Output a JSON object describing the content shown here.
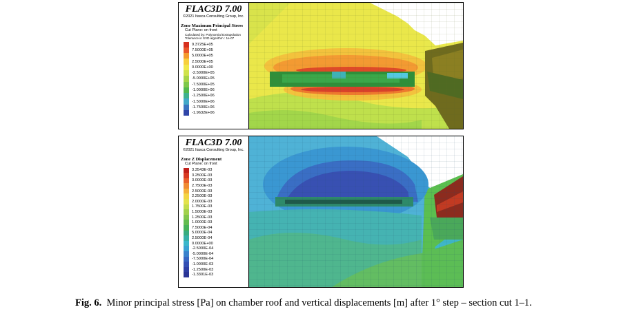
{
  "top_panel": {
    "brand": "FLAC3D 7.00",
    "copyright": "©2021 Itasca Consulting Group, Inc.",
    "legend_title": "Zone Maximum Principal Stress",
    "cut_plane": "Cut Plane: on front",
    "notes": [
      "Calculated by: Polynomial Extrapolation",
      "Tolerance in SVD algorithm : 1e-07"
    ],
    "scale": [
      {
        "label": "9.3725E+05",
        "color": "#d7301f"
      },
      {
        "label": "7.5000E+05",
        "color": "#e9572b"
      },
      {
        "label": "5.0000E+05",
        "color": "#f49a2e"
      },
      {
        "label": "2.5000E+05",
        "color": "#f7cf3d"
      },
      {
        "label": "0.0000E+00",
        "color": "#f0e84a"
      },
      {
        "label": "-2.5000E+05",
        "color": "#cfe24b"
      },
      {
        "label": "-5.0000E+05",
        "color": "#a6d448"
      },
      {
        "label": "-7.5000E+05",
        "color": "#7ec84a"
      },
      {
        "label": "-1.0000E+06",
        "color": "#52b94e"
      },
      {
        "label": "-1.2500E+06",
        "color": "#3fb28e"
      },
      {
        "label": "-1.5000E+06",
        "color": "#42a9c8"
      },
      {
        "label": "-1.7500E+06",
        "color": "#3a74bf"
      },
      {
        "label": "-1.9632E+06",
        "color": "#2f45a8"
      }
    ]
  },
  "bottom_panel": {
    "brand": "FLAC3D 7.00",
    "copyright": "©2021 Itasca Consulting Group, Inc.",
    "legend_title": "Zone Z Displacement",
    "cut_plane": "Cut Plane: on front",
    "scale": [
      {
        "label": "3.3543E-03",
        "color": "#c0201a"
      },
      {
        "label": "3.2500E-03",
        "color": "#d83a22"
      },
      {
        "label": "3.0000E-03",
        "color": "#e9602b"
      },
      {
        "label": "2.7500E-03",
        "color": "#f08a33"
      },
      {
        "label": "2.5000E-03",
        "color": "#f4b03a"
      },
      {
        "label": "2.2500E-03",
        "color": "#f3d443"
      },
      {
        "label": "2.0000E-03",
        "color": "#e3e24c"
      },
      {
        "label": "1.7500E-03",
        "color": "#c3dc4d"
      },
      {
        "label": "1.5000E-03",
        "color": "#a2d14c"
      },
      {
        "label": "1.2500E-03",
        "color": "#82c64d"
      },
      {
        "label": "1.0000E-03",
        "color": "#62bc50"
      },
      {
        "label": "7.5000E-04",
        "color": "#46b25a"
      },
      {
        "label": "5.0000E-04",
        "color": "#38ad80"
      },
      {
        "label": "2.5000E-04",
        "color": "#37b0a8"
      },
      {
        "label": "0.0000E+00",
        "color": "#3bb7cb"
      },
      {
        "label": "-2.5000E-04",
        "color": "#3aa2d3"
      },
      {
        "label": "-5.0000E-04",
        "color": "#3a82cc"
      },
      {
        "label": "-7.5000E-04",
        "color": "#3866c2"
      },
      {
        "label": "-1.0000E-03",
        "color": "#344fb4"
      },
      {
        "label": "-1.2500E-03",
        "color": "#2f3fa4"
      },
      {
        "label": "-1.3301E-03",
        "color": "#2a3596"
      }
    ]
  },
  "caption": {
    "label": "Fig. 6.",
    "text": "Minor principal stress [Pa] on chamber roof and vertical displacements [m] after 1° step – section cut 1–1."
  }
}
